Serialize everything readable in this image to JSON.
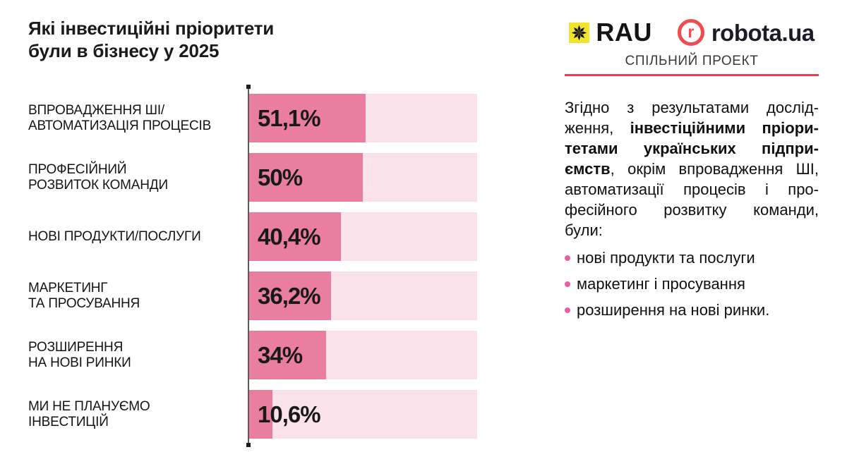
{
  "title": {
    "line1": "Які інвестиційні пріоритети",
    "line2": "були в бізнесу у 2025"
  },
  "header": {
    "rau_label": "RAU",
    "robota_r": "r",
    "robota_label": "robota.ua",
    "subtitle": "СПІЛЬНИЙ ПРОЕКТ"
  },
  "chart_data": {
    "type": "bar",
    "orientation": "horizontal",
    "title": "Які інвестиційні пріоритети були в бізнесу у 2025",
    "categories": [
      [
        "ВПРОВАДЖЕННЯ ШІ/",
        "АВТОМАТИЗАЦІЯ ПРОЦЕСІВ"
      ],
      [
        "ПРОФЕСІЙНИЙ",
        "РОЗВИТОК КОМАНДИ"
      ],
      [
        "НОВІ ПРОДУКТИ/ПОСЛУГИ"
      ],
      [
        "МАРКЕТИНГ",
        "ТА ПРОСУВАННЯ"
      ],
      [
        "РОЗШИРЕННЯ",
        "НА НОВІ РИНКИ"
      ],
      [
        "МИ НЕ ПЛАНУЄМО",
        "ІНВЕСТИЦІЙ"
      ]
    ],
    "values": [
      51.1,
      50,
      40.4,
      36.2,
      34,
      10.6
    ],
    "value_labels": [
      "51,1%",
      "50%",
      "40,4%",
      "36,2%",
      "34%",
      "10,6%"
    ],
    "xlim": [
      0,
      100
    ],
    "grid": false,
    "legend": false,
    "bar_color": "#EA7E9F",
    "track_color": "#FAE2EB"
  },
  "article": {
    "lines": [
      {
        "justify": true,
        "runs": [
          {
            "t": "Згідно з результатами дослід-",
            "b": false
          }
        ]
      },
      {
        "justify": true,
        "runs": [
          {
            "t": "ження, ",
            "b": false
          },
          {
            "t": "інвестіційними пріори-",
            "b": true
          }
        ]
      },
      {
        "justify": true,
        "runs": [
          {
            "t": "тетами українських підпри-",
            "b": true
          }
        ]
      },
      {
        "justify": true,
        "runs": [
          {
            "t": "ємств",
            "b": true
          },
          {
            "t": ", окрім впровадження ШІ,",
            "b": false
          }
        ]
      },
      {
        "justify": true,
        "runs": [
          {
            "t": "автоматизації процесів і про-",
            "b": false
          }
        ]
      },
      {
        "justify": true,
        "runs": [
          {
            "t": "фесійного розвитку команди,",
            "b": false
          }
        ]
      },
      {
        "justify": false,
        "runs": [
          {
            "t": "були:",
            "b": false
          }
        ]
      }
    ],
    "bullets": [
      "нові продукти та послуги",
      "маркетинг і просування",
      "розширення на нові ринки."
    ]
  },
  "colors": {
    "bar_fill": "#EA7E9F",
    "bar_track": "#FAE2EB",
    "accent_red": "#EE3B4F",
    "robota_red": "#F04B4F",
    "rau_yellow": "#F0E42F",
    "bullet_pink": "#E75F9C",
    "text_dark": "#1A1A1A"
  }
}
